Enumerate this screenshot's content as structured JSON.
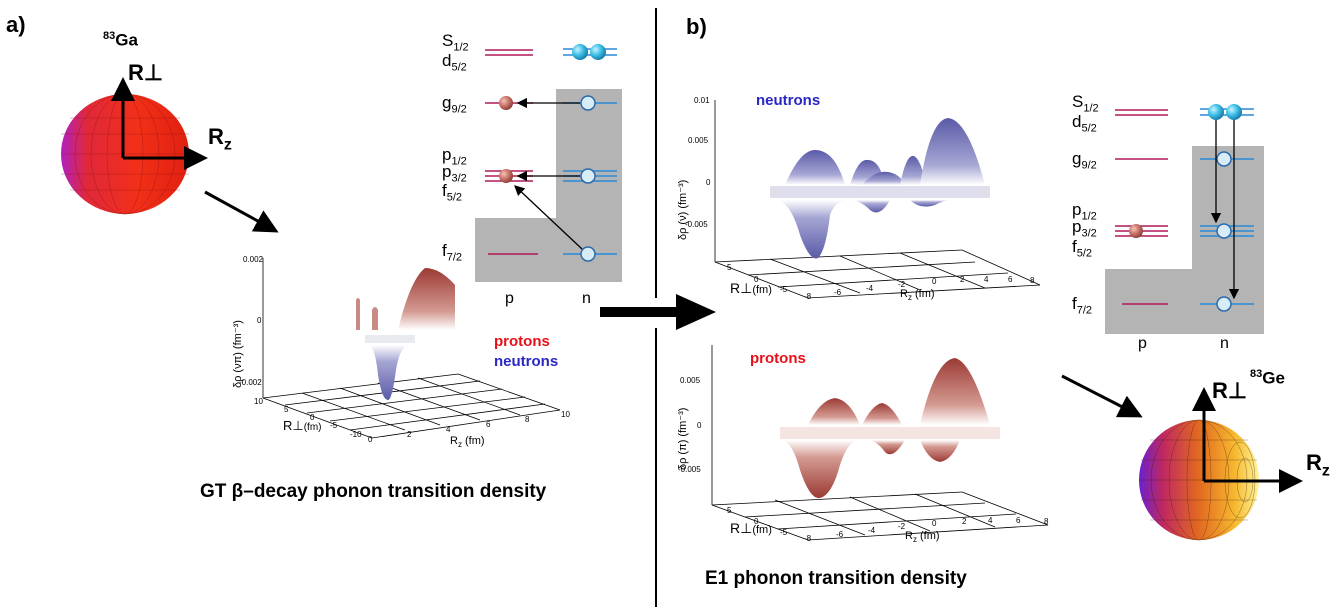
{
  "panel_a": {
    "label": "a)",
    "nucleus": {
      "mass": "83",
      "symbol": "Ga"
    },
    "axis_perp": "R",
    "axis_z": "R",
    "axis_z_sub": "z",
    "levels": [
      "S",
      "d",
      "g",
      "p",
      "p",
      "f",
      "f"
    ],
    "levels_sub": [
      "1/2",
      "5/2",
      "9/2",
      "1/2",
      "3/2",
      "5/2",
      "7/2"
    ],
    "col_p": "p",
    "col_n": "n",
    "plot": {
      "ylabel": "δρ (νπ)  (fm⁻³)",
      "yticks": [
        "0.002",
        "0",
        "-0.002"
      ],
      "xticks": [
        "0",
        "2",
        "4",
        "6",
        "8",
        "10"
      ],
      "perp_ticks": [
        "10",
        "5",
        "0",
        "-5",
        "-10"
      ],
      "xlabel": "R",
      "xlabel_sub": "z",
      "xlabel_unit": "(fm)",
      "perp_label": "R",
      "perp_unit": "(fm)"
    },
    "legend_protons": "protons",
    "legend_neutrons": "neutrons",
    "caption": "GT β–decay phonon transition density"
  },
  "panel_b": {
    "label": "b)",
    "nucleus": {
      "mass": "83",
      "symbol": "Ge"
    },
    "axis_perp": "R",
    "axis_z": "R",
    "axis_z_sub": "z",
    "levels": [
      "S",
      "d",
      "g",
      "p",
      "p",
      "f",
      "f"
    ],
    "levels_sub": [
      "1/2",
      "5/2",
      "9/2",
      "1/2",
      "3/2",
      "5/2",
      "7/2"
    ],
    "col_p": "p",
    "col_n": "n",
    "neutron_plot": {
      "title": "neutrons",
      "ylabel": "δρ (ν)  (fm⁻³)",
      "yticks": [
        "0.01",
        "0.005",
        "0",
        "-0.005"
      ],
      "xticks": [
        "-8",
        "-6",
        "-4",
        "-2",
        "0",
        "2",
        "4",
        "6",
        "8"
      ],
      "perp_ticks": [
        "5",
        "0",
        "-5"
      ],
      "xlabel": "R",
      "xlabel_sub": "z",
      "xlabel_unit": "(fm)",
      "perp_label": "R",
      "perp_unit": "(fm)"
    },
    "proton_plot": {
      "title": "protons",
      "ylabel": "δρ (π)  (fm⁻³)",
      "yticks": [
        "0.005",
        "0",
        "-0.005"
      ],
      "xticks": [
        "-8",
        "-6",
        "-4",
        "-2",
        "0",
        "2",
        "4",
        "6",
        "8"
      ],
      "perp_ticks": [
        "5",
        "0",
        "-5"
      ],
      "xlabel": "R",
      "xlabel_sub": "z",
      "xlabel_unit": "(fm)",
      "perp_label": "R",
      "perp_unit": "(fm)"
    },
    "caption": "E1 phonon transition density"
  },
  "colors": {
    "proton": "#e8101a",
    "neutron": "#2a27c4",
    "level_p": "#b0185a",
    "level_n": "#2a8ad6",
    "shade": "#b4b4b4"
  }
}
